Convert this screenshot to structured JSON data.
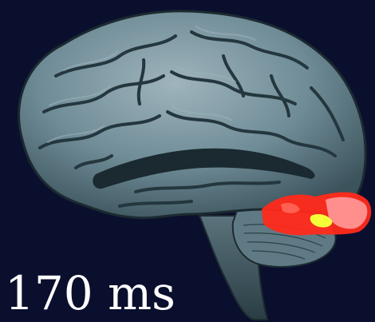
{
  "image": {
    "caption": "170 ms",
    "colors": {
      "background": "#0b0f2e",
      "brain_base": "#6f8c97",
      "brain_shadow": "#22353d",
      "activation_primary": "#ff2a1a",
      "activation_secondary": "#ff9a9a",
      "activation_peak": "#f4ff3a",
      "caption_text": "#ffffff"
    }
  }
}
